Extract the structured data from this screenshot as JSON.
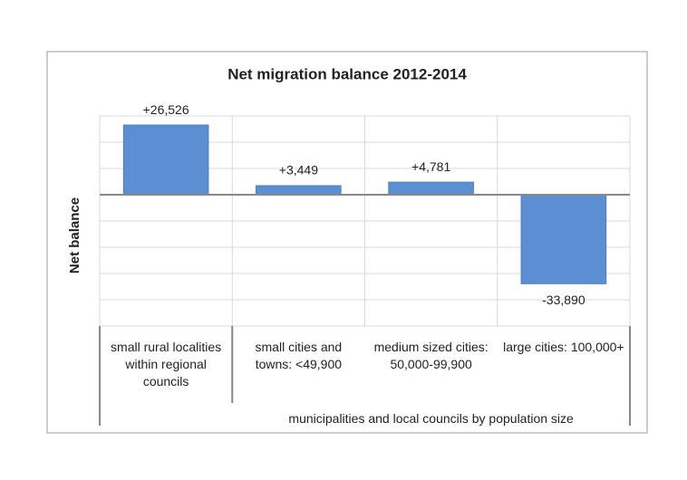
{
  "chart_data": {
    "type": "bar",
    "title": "Net migration balance 2012-2014",
    "y_label": "Net balance",
    "categories": [
      "small rural localities within regional councils",
      "small cities and towns: <49,900",
      "medium sized cities: 50,000-99,900",
      "large cities: 100,000+"
    ],
    "group_label": "municipalities and local councils by population size",
    "values": [
      26526,
      3449,
      4781,
      -33890
    ],
    "value_labels": [
      "+26,526",
      "+3,449",
      "+4,781",
      "-33,890"
    ],
    "color": "#5b8fd2",
    "ylim": [
      -50000,
      30000
    ],
    "yticks": [
      -50000,
      -40000,
      -30000,
      -20000,
      -10000,
      0,
      10000,
      20000,
      30000
    ],
    "grid": true
  }
}
